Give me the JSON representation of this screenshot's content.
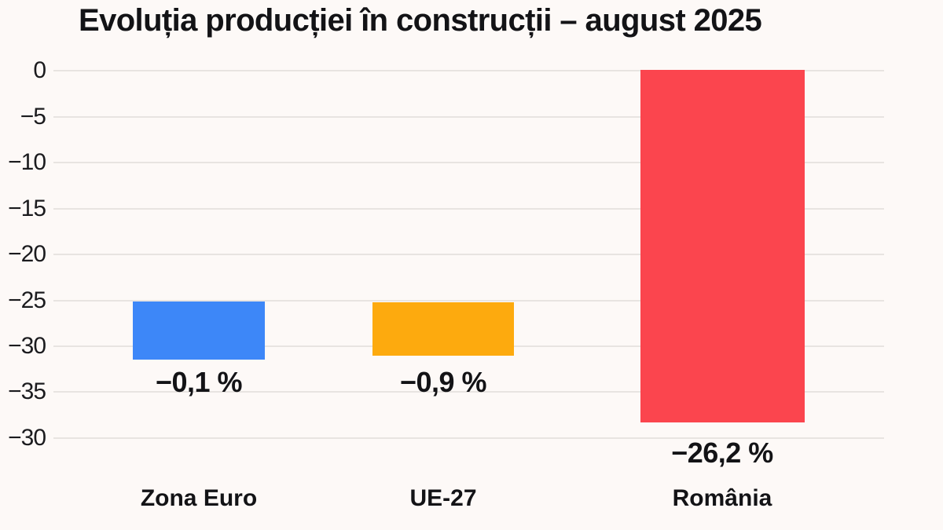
{
  "chart_data": {
    "type": "bar",
    "title": "Evoluția producției în construcții – august 2025",
    "categories": [
      "Zona Euro",
      "UE-27",
      "România"
    ],
    "values": [
      -0.1,
      -0.9,
      -26.2
    ],
    "value_labels": [
      "−0,1 %",
      "−0,9 %",
      "−26,2 %"
    ],
    "series_colors": [
      "#3d87f8",
      "#fdaa0e",
      "#fb454e"
    ],
    "yticks": [
      "0",
      "−5",
      "−10",
      "−15",
      "−20",
      "−25",
      "−30",
      "−35",
      "−30"
    ],
    "xlabel": "",
    "ylabel": "",
    "grid": true,
    "legend": "none",
    "background_color": "#fdf9f7",
    "gridline_color": "#e8e4e1",
    "text_color": "#131316"
  }
}
